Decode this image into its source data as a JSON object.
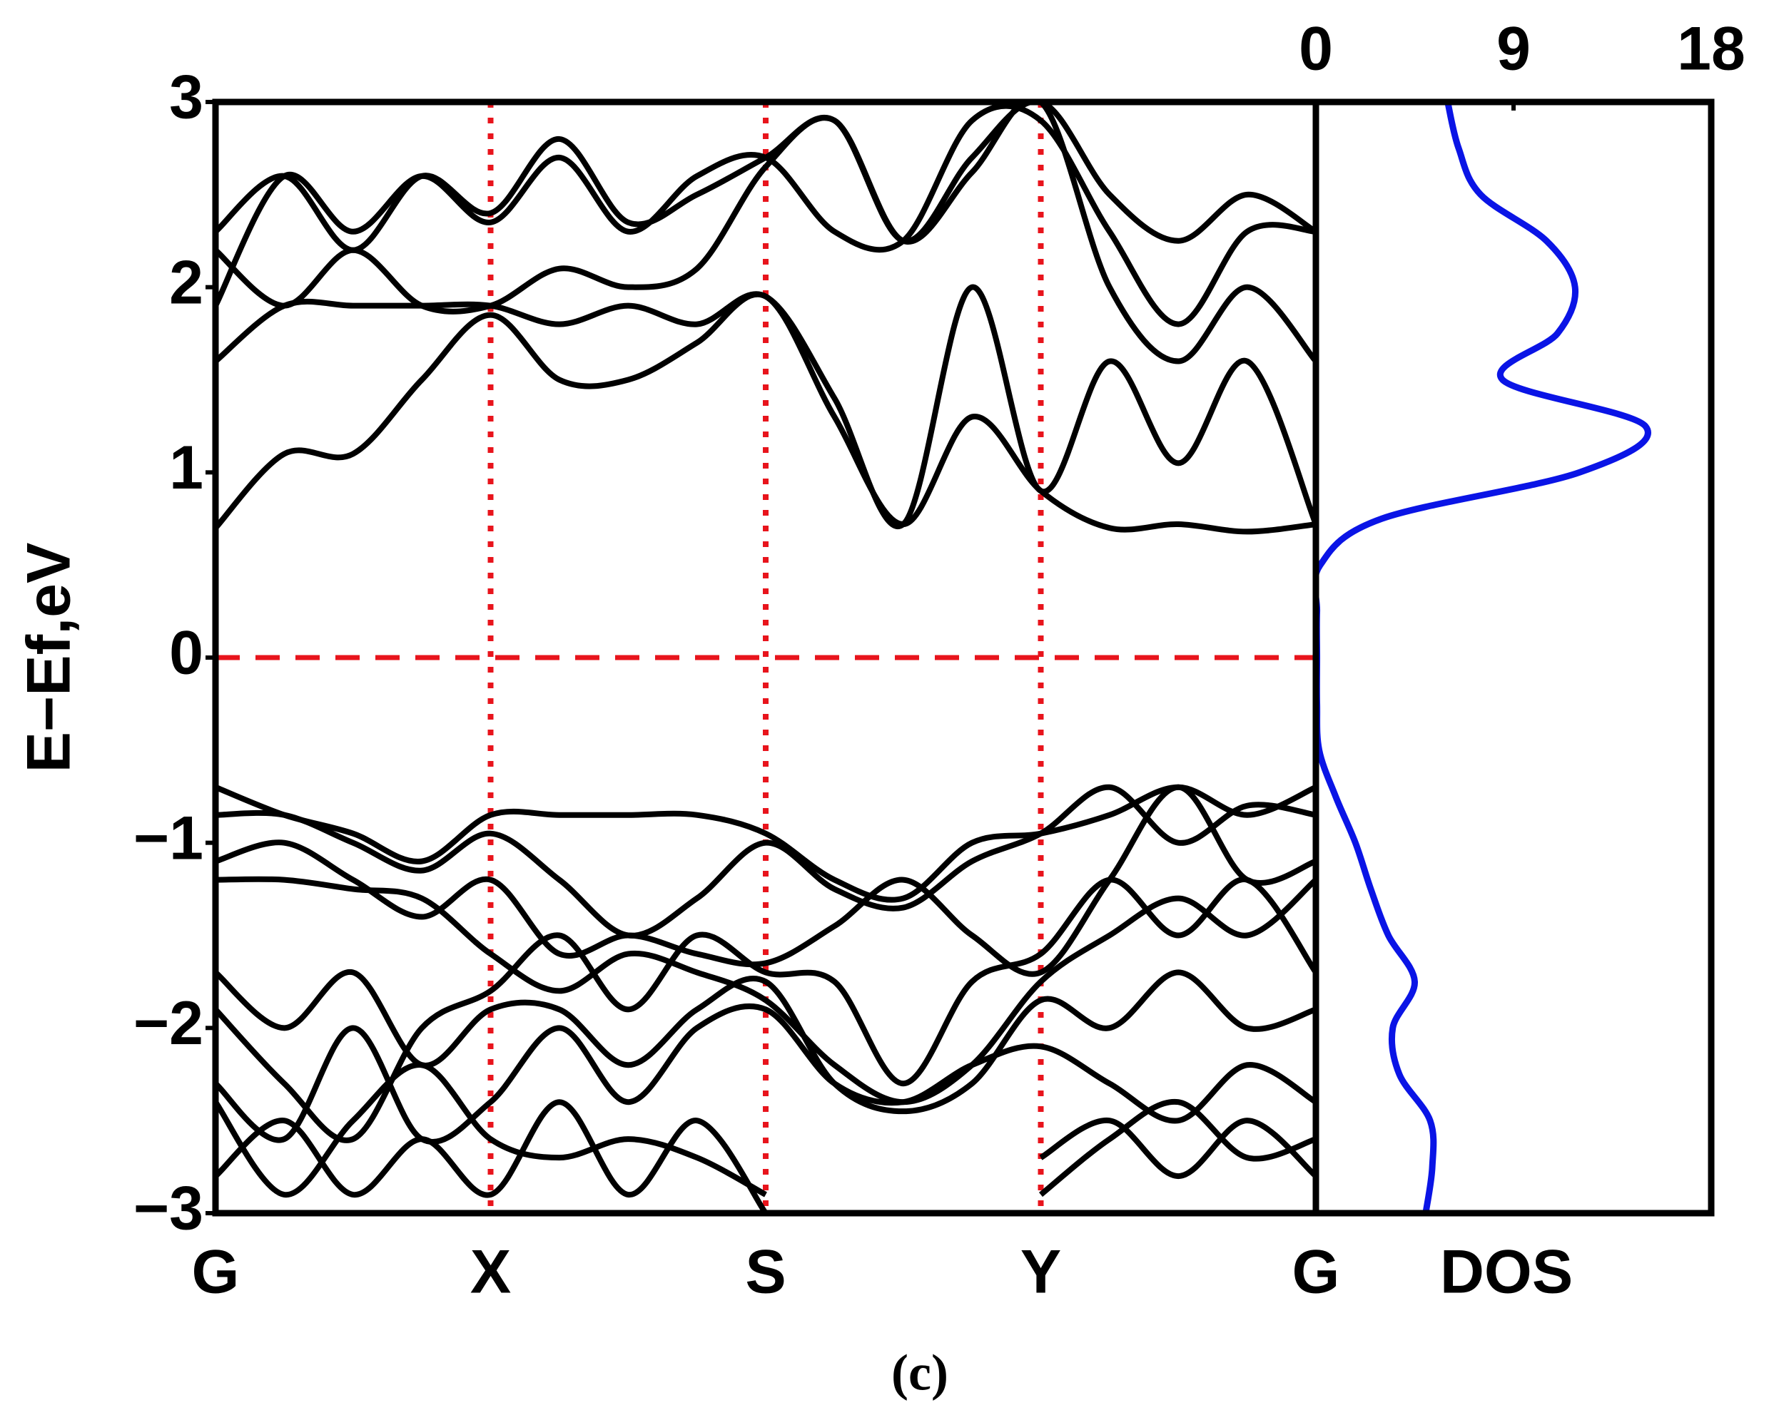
{
  "chart_data": [
    {
      "type": "line",
      "ylabel": "E−Ef,eV",
      "xlim": [
        0,
        4
      ],
      "xticks": [
        {
          "value": 0,
          "label": "G"
        },
        {
          "value": 1,
          "label": "X"
        },
        {
          "value": 2,
          "label": "S"
        },
        {
          "value": 3,
          "label": "Y"
        },
        {
          "value": 4,
          "label": "G"
        }
      ],
      "ylim": [
        -3,
        3
      ],
      "yticks": [
        {
          "value": 3,
          "label": "3"
        },
        {
          "value": 2,
          "label": "2"
        },
        {
          "value": 1,
          "label": "1"
        },
        {
          "value": 0,
          "label": "0"
        },
        {
          "value": -1,
          "label": "−1"
        },
        {
          "value": -2,
          "label": "−2"
        },
        {
          "value": -3,
          "label": "−3"
        }
      ],
      "reference_lines": {
        "color": "#e8141c",
        "x": [
          1,
          2,
          3
        ],
        "y": [
          0
        ]
      },
      "x": [
        0,
        0.25,
        0.5,
        0.75,
        1,
        1.25,
        1.5,
        1.75,
        2,
        2.25,
        2.5,
        2.75,
        3,
        3.25,
        3.5,
        3.75,
        4
      ],
      "series": [
        {
          "color": "#000000",
          "values": [
            0.7,
            1.1,
            1.1,
            1.5,
            1.85,
            1.5,
            1.5,
            1.7,
            1.95,
            1.3,
            0.72,
            1.3,
            0.9,
            0.7,
            0.72,
            0.68,
            0.72
          ]
        },
        {
          "color": "#000000",
          "values": [
            1.6,
            1.9,
            1.9,
            1.9,
            1.9,
            1.8,
            1.9,
            1.8,
            1.95,
            1.4,
            0.72,
            2.0,
            0.9,
            1.6,
            1.05,
            1.6,
            0.72
          ]
        },
        {
          "color": "#000000",
          "values": [
            1.9,
            2.6,
            2.3,
            2.6,
            2.35,
            2.7,
            2.3,
            2.6,
            2.7,
            2.3,
            2.25,
            2.9,
            2.9,
            2.3,
            1.8,
            2.3,
            2.3
          ]
        },
        {
          "color": "#000000",
          "values": [
            2.3,
            2.6,
            2.2,
            2.6,
            2.4,
            2.8,
            2.35,
            2.5,
            2.7,
            2.9,
            2.25,
            2.7,
            3.0,
            2.5,
            2.25,
            2.5,
            2.3
          ]
        },
        {
          "color": "#000000",
          "values": [
            2.2,
            1.9,
            2.2,
            1.9,
            1.9,
            2.1,
            2.0,
            2.1,
            2.65,
            2.9,
            2.25,
            2.62,
            3.0,
            2.0,
            1.6,
            2.0,
            1.6
          ]
        },
        {
          "color": "#000000",
          "values": [
            -0.7,
            -0.85,
            -0.95,
            -1.1,
            -0.85,
            -0.85,
            -0.85,
            -0.85,
            -0.95,
            -1.2,
            -1.3,
            -1.0,
            -0.95,
            -0.85,
            -0.7,
            -0.85,
            -0.7
          ]
        },
        {
          "color": "#000000",
          "values": [
            -0.85,
            -0.85,
            -1.0,
            -1.15,
            -0.95,
            -1.2,
            -1.5,
            -1.3,
            -1.0,
            -1.25,
            -1.35,
            -1.1,
            -0.95,
            -0.7,
            -1.0,
            -0.8,
            -0.85
          ]
        },
        {
          "color": "#000000",
          "values": [
            -1.1,
            -1.0,
            -1.2,
            -1.4,
            -1.2,
            -1.6,
            -1.5,
            -1.6,
            -1.65,
            -1.45,
            -1.2,
            -1.5,
            -1.7,
            -1.2,
            -0.7,
            -1.2,
            -1.1
          ]
        },
        {
          "color": "#000000",
          "values": [
            -1.2,
            -1.2,
            -1.25,
            -1.3,
            -1.6,
            -1.8,
            -1.6,
            -1.7,
            -1.85,
            -2.2,
            -2.4,
            -2.2,
            -1.75,
            -1.5,
            -1.3,
            -1.5,
            -1.2
          ]
        },
        {
          "color": "#000000",
          "values": [
            -1.9,
            -2.3,
            -2.6,
            -2.0,
            -1.8,
            -1.5,
            -1.9,
            -1.5,
            -1.7,
            -1.75,
            -2.3,
            -1.75,
            -1.6,
            -1.2,
            -1.5,
            -1.2,
            -1.7
          ]
        },
        {
          "color": "#000000",
          "values": [
            -1.7,
            -2.0,
            -1.7,
            -2.2,
            -1.9,
            -1.9,
            -2.2,
            -1.9,
            -1.75,
            -2.3,
            -2.45,
            -2.3,
            -1.85,
            -2.0,
            -1.7,
            -2.0,
            -1.9
          ]
        },
        {
          "color": "#000000",
          "values": [
            -2.3,
            -2.6,
            -2.0,
            -2.6,
            -2.4,
            -2.0,
            -2.4,
            -2.0,
            -1.9,
            -2.3,
            -2.4,
            -2.2,
            -2.1,
            -2.3,
            -2.5,
            -2.2,
            -2.4
          ]
        },
        {
          "color": "#000000",
          "values": [
            -2.4,
            -2.9,
            -2.5,
            -2.2,
            -2.6,
            -2.7,
            -2.6,
            -2.7,
            -2.9,
            null,
            null,
            null,
            -2.7,
            -2.5,
            -2.8,
            -2.5,
            -2.8
          ]
        },
        {
          "color": "#000000",
          "values": [
            -2.8,
            -2.5,
            -2.9,
            -2.6,
            -2.9,
            -2.4,
            -2.9,
            -2.5,
            -3.0,
            null,
            null,
            null,
            -2.9,
            -2.6,
            -2.4,
            -2.7,
            -2.6
          ]
        }
      ]
    },
    {
      "type": "line",
      "orientation": "horizontal",
      "xlabel": "DOS",
      "xlim": [
        0,
        18
      ],
      "xticks": [
        0,
        9,
        18
      ],
      "ylim": [
        -3,
        3
      ],
      "color": "#0a14e6",
      "x": [
        -3,
        -2.75,
        -2.5,
        -2.25,
        -2,
        -1.75,
        -1.5,
        -1.25,
        -1,
        -0.75,
        -0.5,
        -0.25,
        0,
        0.25,
        0.5,
        0.75,
        1,
        1.25,
        1.5,
        1.75,
        2,
        2.25,
        2.5,
        2.75,
        3
      ],
      "values": [
        5,
        5.3,
        5.2,
        3.8,
        3.5,
        4.5,
        3.3,
        2.5,
        1.8,
        0.9,
        0.15,
        0.05,
        0.05,
        0.05,
        0.2,
        3,
        12,
        15,
        8.5,
        11,
        11.8,
        10.5,
        7.5,
        6.5,
        6
      ]
    }
  ],
  "caption": "(c)"
}
